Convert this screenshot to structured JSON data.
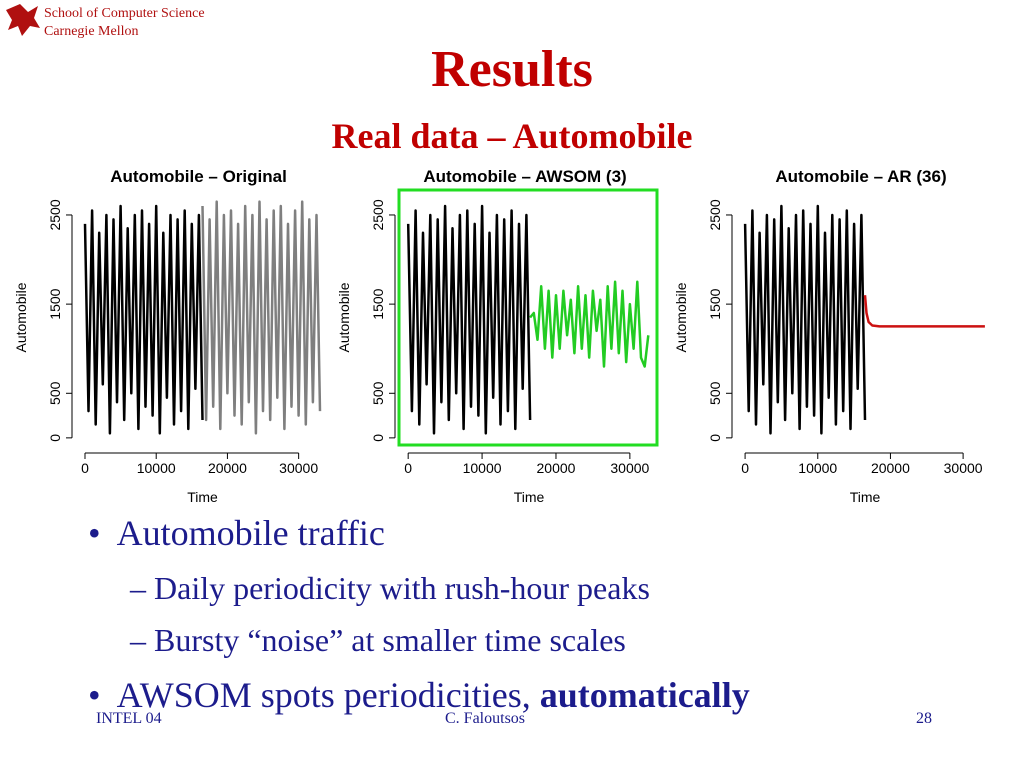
{
  "header": {
    "school": "School of Computer Science",
    "university": "Carnegie Mellon"
  },
  "title": "Results",
  "subtitle": "Real data – Automobile",
  "bullets": [
    {
      "text": "Automobile traffic",
      "subs": [
        "Daily periodicity with rush-hour peaks",
        "Bursty “noise” at smaller time scales"
      ]
    },
    {
      "text": "AWSOM spots periodicities,",
      "bold": "automatically"
    }
  ],
  "footer": {
    "left": "INTEL 04",
    "center": "C. Faloutsos",
    "page": "28"
  },
  "chart_data": [
    {
      "type": "line",
      "title": "Automobile  – Original",
      "xlabel": "Time",
      "ylabel": "Automobile",
      "xlim": [
        -700,
        33700
      ],
      "ylim": [
        -80,
        2780
      ],
      "xticks": [
        0,
        10000,
        20000,
        30000
      ],
      "yticks": [
        0,
        500,
        1500,
        2500
      ],
      "series": [
        {
          "color": "#000000",
          "x": [
            0,
            500,
            1000,
            1500,
            2000,
            2500,
            3000,
            3500,
            4000,
            4500,
            5000,
            5500,
            6000,
            6500,
            7000,
            7500,
            8000,
            8500,
            9000,
            9500,
            10000,
            10500,
            11000,
            11500,
            12000,
            12500,
            13000,
            13500,
            14000,
            14500,
            15000,
            15500,
            16000,
            16500
          ],
          "values": [
            2400,
            300,
            2550,
            150,
            2300,
            600,
            2500,
            50,
            2450,
            400,
            2600,
            200,
            2350,
            500,
            2500,
            100,
            2550,
            350,
            2400,
            250,
            2600,
            50,
            2300,
            450,
            2500,
            150,
            2450,
            300,
            2550,
            100,
            2400,
            550,
            2500,
            200
          ]
        },
        {
          "color": "#7f7f7f",
          "x": [
            16500,
            17000,
            17500,
            18000,
            18500,
            19000,
            19500,
            20000,
            20500,
            21000,
            21500,
            22000,
            22500,
            23000,
            23500,
            24000,
            24500,
            25000,
            25500,
            26000,
            26500,
            27000,
            27500,
            28000,
            28500,
            29000,
            29500,
            30000,
            30500,
            31000,
            31500,
            32000,
            32500,
            33000
          ],
          "values": [
            2600,
            200,
            2450,
            350,
            2650,
            100,
            2500,
            500,
            2550,
            250,
            2400,
            150,
            2600,
            400,
            2500,
            50,
            2650,
            300,
            2450,
            200,
            2550,
            450,
            2600,
            100,
            2400,
            350,
            2550,
            250,
            2650,
            150,
            2450,
            400,
            2500,
            300
          ]
        }
      ]
    },
    {
      "type": "line",
      "title": "Automobile – AWSOM (3)",
      "xlabel": "Time",
      "ylabel": "Automobile",
      "frame_color": "#22dd22",
      "xlim": [
        -700,
        33400
      ],
      "ylim": [
        -80,
        2780
      ],
      "xticks": [
        0,
        10000,
        20000,
        30000
      ],
      "yticks": [
        0,
        500,
        1500,
        2500
      ],
      "series": [
        {
          "color": "#000000",
          "x": [
            0,
            500,
            1000,
            1500,
            2000,
            2500,
            3000,
            3500,
            4000,
            4500,
            5000,
            5500,
            6000,
            6500,
            7000,
            7500,
            8000,
            8500,
            9000,
            9500,
            10000,
            10500,
            11000,
            11500,
            12000,
            12500,
            13000,
            13500,
            14000,
            14500,
            15000,
            15500,
            16000,
            16500
          ],
          "values": [
            2400,
            300,
            2550,
            150,
            2300,
            600,
            2500,
            50,
            2450,
            400,
            2600,
            200,
            2350,
            500,
            2500,
            100,
            2550,
            350,
            2400,
            250,
            2600,
            50,
            2300,
            450,
            2500,
            150,
            2450,
            300,
            2550,
            100,
            2400,
            550,
            2500,
            200
          ]
        },
        {
          "color": "#22cc22",
          "x": [
            16500,
            17000,
            17500,
            18000,
            18500,
            19000,
            19500,
            20000,
            20500,
            21000,
            21500,
            22000,
            22500,
            23000,
            23500,
            24000,
            24500,
            25000,
            25500,
            26000,
            26500,
            27000,
            27500,
            28000,
            28500,
            29000,
            29500,
            30000,
            30500,
            31000,
            31500,
            32000,
            32500
          ],
          "values": [
            1350,
            1400,
            1100,
            1700,
            1000,
            1650,
            900,
            1600,
            1000,
            1650,
            1150,
            1550,
            950,
            1700,
            1000,
            1600,
            900,
            1650,
            1200,
            1550,
            800,
            1700,
            1000,
            1750,
            950,
            1650,
            850,
            1500,
            1000,
            1750,
            900,
            800,
            1150
          ]
        }
      ]
    },
    {
      "type": "line",
      "title": "Automobile – AR (36)",
      "xlabel": "Time",
      "ylabel": "Automobile",
      "xlim": [
        -700,
        33700
      ],
      "ylim": [
        -80,
        2780
      ],
      "xticks": [
        0,
        10000,
        20000,
        30000
      ],
      "yticks": [
        0,
        500,
        1500,
        2500
      ],
      "series": [
        {
          "color": "#000000",
          "x": [
            0,
            500,
            1000,
            1500,
            2000,
            2500,
            3000,
            3500,
            4000,
            4500,
            5000,
            5500,
            6000,
            6500,
            7000,
            7500,
            8000,
            8500,
            9000,
            9500,
            10000,
            10500,
            11000,
            11500,
            12000,
            12500,
            13000,
            13500,
            14000,
            14500,
            15000,
            15500,
            16000,
            16500
          ],
          "values": [
            2400,
            300,
            2550,
            150,
            2300,
            600,
            2500,
            50,
            2450,
            400,
            2600,
            200,
            2350,
            500,
            2500,
            100,
            2550,
            350,
            2400,
            250,
            2600,
            50,
            2300,
            450,
            2500,
            150,
            2450,
            300,
            2550,
            100,
            2400,
            550,
            2500,
            200
          ]
        },
        {
          "color": "#cc1111",
          "x": [
            16500,
            16700,
            17000,
            17500,
            18500,
            33000
          ],
          "values": [
            1600,
            1400,
            1300,
            1260,
            1250,
            1250
          ]
        }
      ]
    }
  ]
}
